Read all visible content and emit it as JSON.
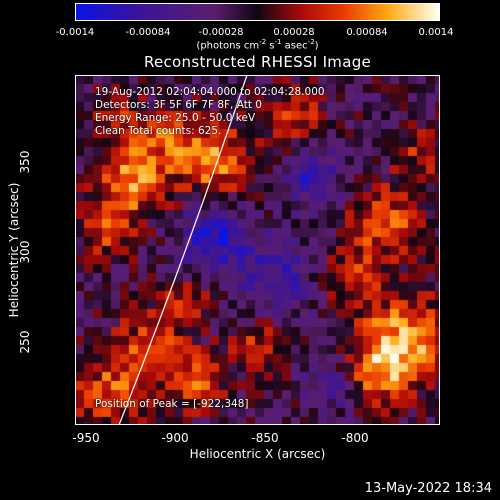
{
  "colorbar": {
    "ticks": [
      "-0.0014",
      "-0.00084",
      "-0.00028",
      "0.00028",
      "0.00084",
      "0.0014"
    ],
    "units_prefix": "(photons cm",
    "units_exp1": "-2",
    "units_mid": " s",
    "units_exp2": "-1",
    "units_mid2": " asec",
    "units_exp3": "-2",
    "units_suffix": ")"
  },
  "title": "Reconstructed RHESSI Image",
  "info": {
    "line1": "19-Aug-2012 02:04:04.000 to 02:04:28.000",
    "line2": "Detectors: 3F 5F 6F 7F 8F, Att 0",
    "line3": "Energy Range: 25.0 - 50.0 keV",
    "line4": "Clean    Total counts: 625."
  },
  "peak": "Position of Peak = [-922,348]",
  "axes": {
    "xlabel": "Heliocentric X (arcsec)",
    "ylabel": "Heliocentric Y (arcsec)",
    "xticks": [
      "-950",
      "-900",
      "-850",
      "-800"
    ],
    "yticks": [
      "350",
      "300",
      "250"
    ]
  },
  "timestamp": "13-May-2022 18:34",
  "colors": {
    "background": "#000000",
    "limb_line": "#ffffff"
  }
}
